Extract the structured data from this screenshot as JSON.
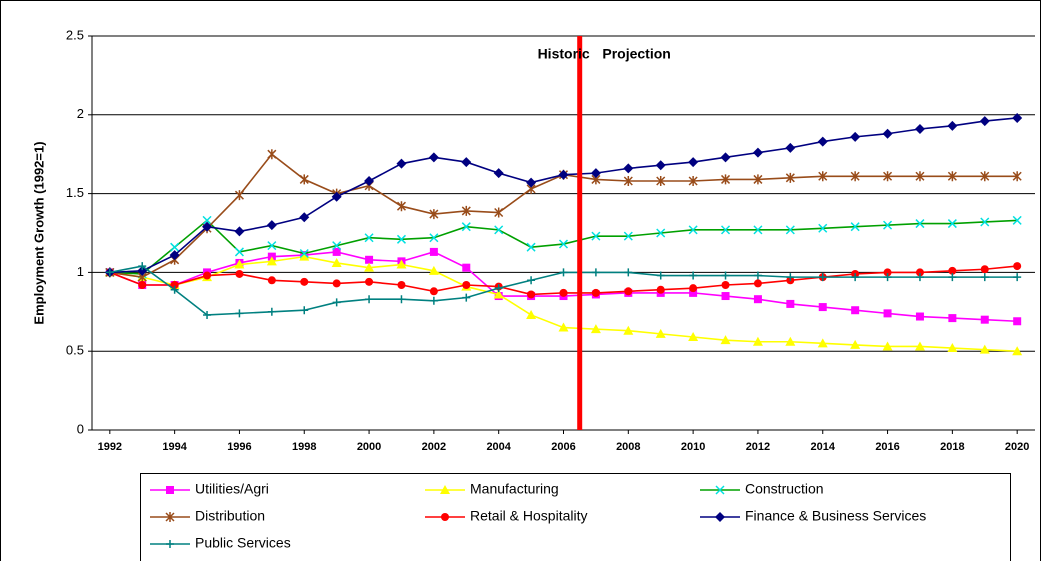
{
  "chart_data": {
    "type": "line",
    "y_label": "Employment Growth (1992=1)",
    "annotations": [
      {
        "text": "Historic",
        "x": 2005.2,
        "y": 2.38,
        "color": "#ff0000"
      },
      {
        "text": "Projection",
        "x": 2007.2,
        "y": 2.38,
        "color": "#ff0000"
      }
    ],
    "divider_x": 2006.5,
    "divider_color": "#ff0000",
    "x": [
      1992,
      1993,
      1994,
      1995,
      1996,
      1997,
      1998,
      1999,
      2000,
      2001,
      2002,
      2003,
      2004,
      2005,
      2006,
      2007,
      2008,
      2009,
      2010,
      2011,
      2012,
      2013,
      2014,
      2015,
      2016,
      2017,
      2018,
      2019,
      2020
    ],
    "xlim": [
      1991.45,
      2020.55
    ],
    "xticks": [
      1992,
      1994,
      1996,
      1998,
      2000,
      2002,
      2004,
      2006,
      2008,
      2010,
      2012,
      2014,
      2016,
      2018,
      2020
    ],
    "ylim": [
      0,
      2.5
    ],
    "yticks": [
      0,
      0.5,
      1,
      1.5,
      2,
      2.5
    ],
    "grid": true,
    "legend": "bottom",
    "series": [
      {
        "name": "Utilities/Agri",
        "color": "#ff00ff",
        "marker": "square",
        "marker_color": "#ff00ff",
        "values": [
          1.0,
          0.92,
          0.92,
          1.0,
          1.06,
          1.1,
          1.11,
          1.13,
          1.08,
          1.07,
          1.13,
          1.03,
          0.85,
          0.85,
          0.85,
          0.86,
          0.87,
          0.87,
          0.87,
          0.85,
          0.83,
          0.8,
          0.78,
          0.76,
          0.74,
          0.72,
          0.71,
          0.7,
          0.69
        ]
      },
      {
        "name": "Manufacturing",
        "color": "#ffff00",
        "marker": "triangle",
        "marker_color": "#ffff00",
        "values": [
          1.0,
          0.97,
          0.92,
          0.97,
          1.05,
          1.07,
          1.1,
          1.06,
          1.03,
          1.05,
          1.01,
          0.91,
          0.86,
          0.73,
          0.65,
          0.64,
          0.63,
          0.61,
          0.59,
          0.57,
          0.56,
          0.56,
          0.55,
          0.54,
          0.53,
          0.53,
          0.52,
          0.51,
          0.5
        ]
      },
      {
        "name": "Construction",
        "color": "#00a000",
        "marker": "x",
        "marker_color": "#00e0e0",
        "values": [
          1.0,
          0.99,
          1.16,
          1.33,
          1.13,
          1.17,
          1.12,
          1.17,
          1.22,
          1.21,
          1.22,
          1.29,
          1.27,
          1.16,
          1.18,
          1.23,
          1.23,
          1.25,
          1.27,
          1.27,
          1.27,
          1.27,
          1.28,
          1.29,
          1.3,
          1.31,
          1.31,
          1.32,
          1.33
        ]
      },
      {
        "name": "Distribution",
        "color": "#994c1a",
        "marker": "star",
        "marker_color": "#994c1a",
        "values": [
          1.0,
          0.97,
          1.08,
          1.28,
          1.49,
          1.75,
          1.59,
          1.5,
          1.55,
          1.42,
          1.37,
          1.39,
          1.38,
          1.53,
          1.62,
          1.59,
          1.58,
          1.58,
          1.58,
          1.59,
          1.59,
          1.6,
          1.61,
          1.61,
          1.61,
          1.61,
          1.61,
          1.61,
          1.61
        ]
      },
      {
        "name": "Retail & Hospitality",
        "color": "#ff0000",
        "marker": "circle",
        "marker_color": "#ff0000",
        "values": [
          1.0,
          0.92,
          0.92,
          0.98,
          0.99,
          0.95,
          0.94,
          0.93,
          0.94,
          0.92,
          0.88,
          0.92,
          0.91,
          0.86,
          0.87,
          0.87,
          0.88,
          0.89,
          0.9,
          0.92,
          0.93,
          0.95,
          0.97,
          0.99,
          1.0,
          1.0,
          1.01,
          1.02,
          1.04
        ]
      },
      {
        "name": "Finance & Business Services",
        "color": "#000080",
        "marker": "diamond",
        "marker_color": "#000080",
        "values": [
          1.0,
          1.01,
          1.11,
          1.29,
          1.26,
          1.3,
          1.35,
          1.48,
          1.58,
          1.69,
          1.73,
          1.7,
          1.63,
          1.57,
          1.62,
          1.63,
          1.66,
          1.68,
          1.7,
          1.73,
          1.76,
          1.79,
          1.83,
          1.86,
          1.88,
          1.91,
          1.93,
          1.96,
          1.98
        ]
      },
      {
        "name": "Public Services",
        "color": "#008080",
        "marker": "plus",
        "marker_color": "#008080",
        "values": [
          1.0,
          1.04,
          0.89,
          0.73,
          0.74,
          0.75,
          0.76,
          0.81,
          0.83,
          0.83,
          0.82,
          0.84,
          0.9,
          0.95,
          1.0,
          1.0,
          1.0,
          0.98,
          0.98,
          0.98,
          0.98,
          0.97,
          0.97,
          0.97,
          0.97,
          0.97,
          0.97,
          0.97,
          0.97
        ]
      }
    ]
  }
}
